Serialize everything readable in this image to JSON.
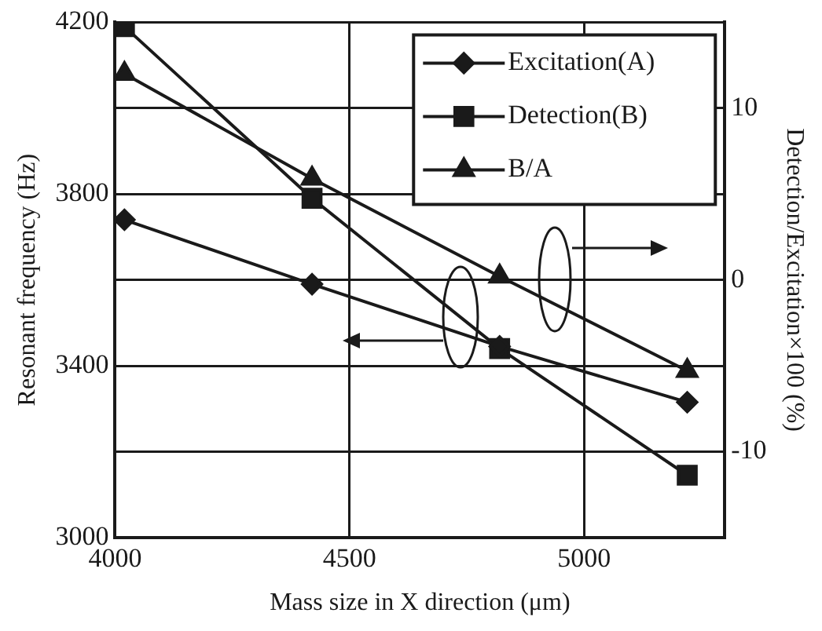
{
  "chart_data": {
    "type": "line",
    "xlabel": "Mass size in X direction (μm)",
    "ylabel": "Resonant frequency (Hz)",
    "y2label": "Detection/Excitation×100 (%)",
    "x": [
      4020,
      4420,
      4820,
      5220
    ],
    "series": [
      {
        "name": "Excitation(A)",
        "color": "#1a1a1a",
        "marker": "diamond",
        "values": [
          3740,
          3590,
          3445,
          3315
        ]
      },
      {
        "name": "Detection(B)",
        "color": "#1a1a1a",
        "marker": "square",
        "values": [
          4190,
          3790,
          3440,
          3145
        ]
      },
      {
        "name": "B/A",
        "color": "#1a1a1a",
        "marker": "triangle",
        "axis": "y2",
        "values": [
          12,
          5.9,
          0.2,
          -5.3
        ]
      }
    ],
    "xlim": [
      4000,
      5300
    ],
    "xticks": [
      4000,
      4500,
      5000
    ],
    "ylim": [
      3000,
      4200
    ],
    "yticks": [
      3000,
      {
        "value": 3200,
        "label": null
      },
      3400,
      {
        "value": 3600,
        "label": null
      },
      3800,
      {
        "value": 4000,
        "label": null
      },
      4200
    ],
    "y2lim": [
      -15,
      15
    ],
    "y2ticks": [
      -10,
      0,
      10
    ],
    "grid": true,
    "legend": "top right",
    "line_style": "solid"
  }
}
